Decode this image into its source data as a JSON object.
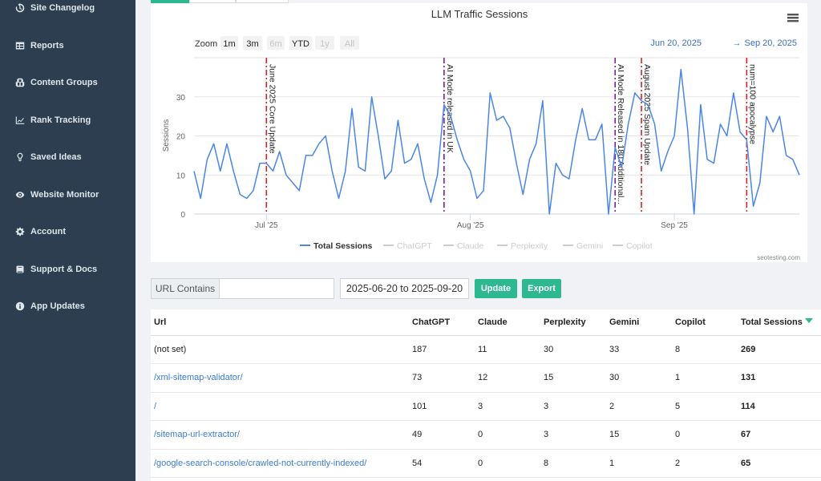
{
  "sidebar": {
    "items": [
      {
        "label": "Site Changelog",
        "icon": "history-icon"
      },
      {
        "label": "Reports",
        "icon": "table-icon"
      },
      {
        "label": "Content Groups",
        "icon": "cubes-icon"
      },
      {
        "label": "Rank Tracking",
        "icon": "line-chart-icon"
      },
      {
        "label": "Saved Ideas",
        "icon": "lightbulb-icon"
      },
      {
        "label": "Website Monitor",
        "icon": "eye-icon"
      },
      {
        "label": "Account",
        "icon": "gear-icon"
      },
      {
        "label": "Support & Docs",
        "icon": "book-icon"
      },
      {
        "label": "App Updates",
        "icon": "info-circle-icon"
      }
    ]
  },
  "chart": {
    "zoom_label": "Zoom",
    "zoom_buttons": [
      {
        "label": "1m",
        "enabled": true
      },
      {
        "label": "3m",
        "enabled": true
      },
      {
        "label": "6m",
        "enabled": false
      },
      {
        "label": "YTD",
        "enabled": true
      },
      {
        "label": "1y",
        "enabled": false
      },
      {
        "label": "All",
        "enabled": false
      }
    ],
    "range_from": "Jun 20, 2025",
    "range_arrow": "→",
    "range_to": "Sep 20, 2025",
    "credit": "seotesting.com"
  },
  "chart_data": {
    "type": "line",
    "title": "LLM Traffic Sessions",
    "ylabel": "Sessions",
    "xlabel": "",
    "ylim": [
      0,
      40
    ],
    "yticks": [
      0,
      10,
      20,
      30
    ],
    "xticks": [
      "Jul '25",
      "Aug '25",
      "Sep '25"
    ],
    "x_start": "2025-06-20",
    "x_end": "2025-09-20",
    "grid": true,
    "legend_position": "bottom",
    "series": [
      {
        "name": "Total Sessions",
        "color": "#4a86e8",
        "visible": true,
        "values": [
          11,
          4,
          14,
          18,
          11,
          18,
          11,
          5,
          4,
          6,
          13,
          13,
          11,
          16,
          10,
          8,
          6,
          15,
          15,
          18,
          20,
          11,
          4,
          11,
          27,
          12,
          11,
          30,
          20,
          9,
          11,
          24,
          13,
          14,
          18,
          9,
          3,
          10,
          28,
          25,
          19,
          14,
          11,
          4,
          6,
          31,
          24,
          25,
          22,
          13,
          5,
          14,
          18,
          29,
          0,
          13,
          10,
          9,
          19,
          27,
          19,
          19,
          23,
          0,
          17,
          12,
          23,
          31,
          29,
          28,
          23,
          11,
          16,
          20,
          37,
          22,
          0,
          28,
          14,
          13,
          23,
          20,
          31,
          21,
          19,
          2,
          8,
          25,
          21,
          25,
          15,
          14,
          10
        ]
      },
      {
        "name": "ChatGPT",
        "color": "#cccccc",
        "visible": false,
        "values": []
      },
      {
        "name": "Claude",
        "color": "#cccccc",
        "visible": false,
        "values": []
      },
      {
        "name": "Perplexity",
        "color": "#cccccc",
        "visible": false,
        "values": []
      },
      {
        "name": "Gemini",
        "color": "#cccccc",
        "visible": false,
        "values": []
      },
      {
        "name": "Copilot",
        "color": "#cccccc",
        "visible": false,
        "values": []
      }
    ],
    "annotations": [
      {
        "day": 11,
        "label": "June 2025 Core Update",
        "color": "#e02020"
      },
      {
        "day": 38,
        "label": "AI Mode released in UK",
        "color": "#7a1fa2"
      },
      {
        "day": 64,
        "label": "AI Mode Released in 180 Additional...",
        "color": "#7a1fa2"
      },
      {
        "day": 68,
        "label": "August 2025 Spam Update",
        "color": "#e02020"
      },
      {
        "day": 84,
        "label": "num=100 apocalypse",
        "color": "#e02020"
      }
    ]
  },
  "filter": {
    "url_label": "URL Contains",
    "url_value": "",
    "date_range": "2025-06-20 to 2025-09-20",
    "update_label": "Update",
    "export_label": "Export"
  },
  "table": {
    "headers": [
      "Url",
      "ChatGPT",
      "Claude",
      "Perplexity",
      "Gemini",
      "Copilot",
      "Total Sessions"
    ],
    "rows": [
      {
        "url": "(not set)",
        "link": false,
        "chatgpt": "187",
        "claude": "11",
        "perplexity": "30",
        "gemini": "33",
        "copilot": "8",
        "total": "269"
      },
      {
        "url": "/xml-sitemap-validator/",
        "link": true,
        "chatgpt": "73",
        "claude": "12",
        "perplexity": "15",
        "gemini": "30",
        "copilot": "1",
        "total": "131"
      },
      {
        "url": "/",
        "link": true,
        "chatgpt": "101",
        "claude": "3",
        "perplexity": "3",
        "gemini": "2",
        "copilot": "5",
        "total": "114"
      },
      {
        "url": "/sitemap-url-extractor/",
        "link": true,
        "chatgpt": "49",
        "claude": "0",
        "perplexity": "3",
        "gemini": "15",
        "copilot": "0",
        "total": "67"
      },
      {
        "url": "/google-search-console/crawled-not-currently-indexed/",
        "link": true,
        "chatgpt": "54",
        "claude": "0",
        "perplexity": "8",
        "gemini": "1",
        "copilot": "2",
        "total": "65"
      }
    ]
  }
}
